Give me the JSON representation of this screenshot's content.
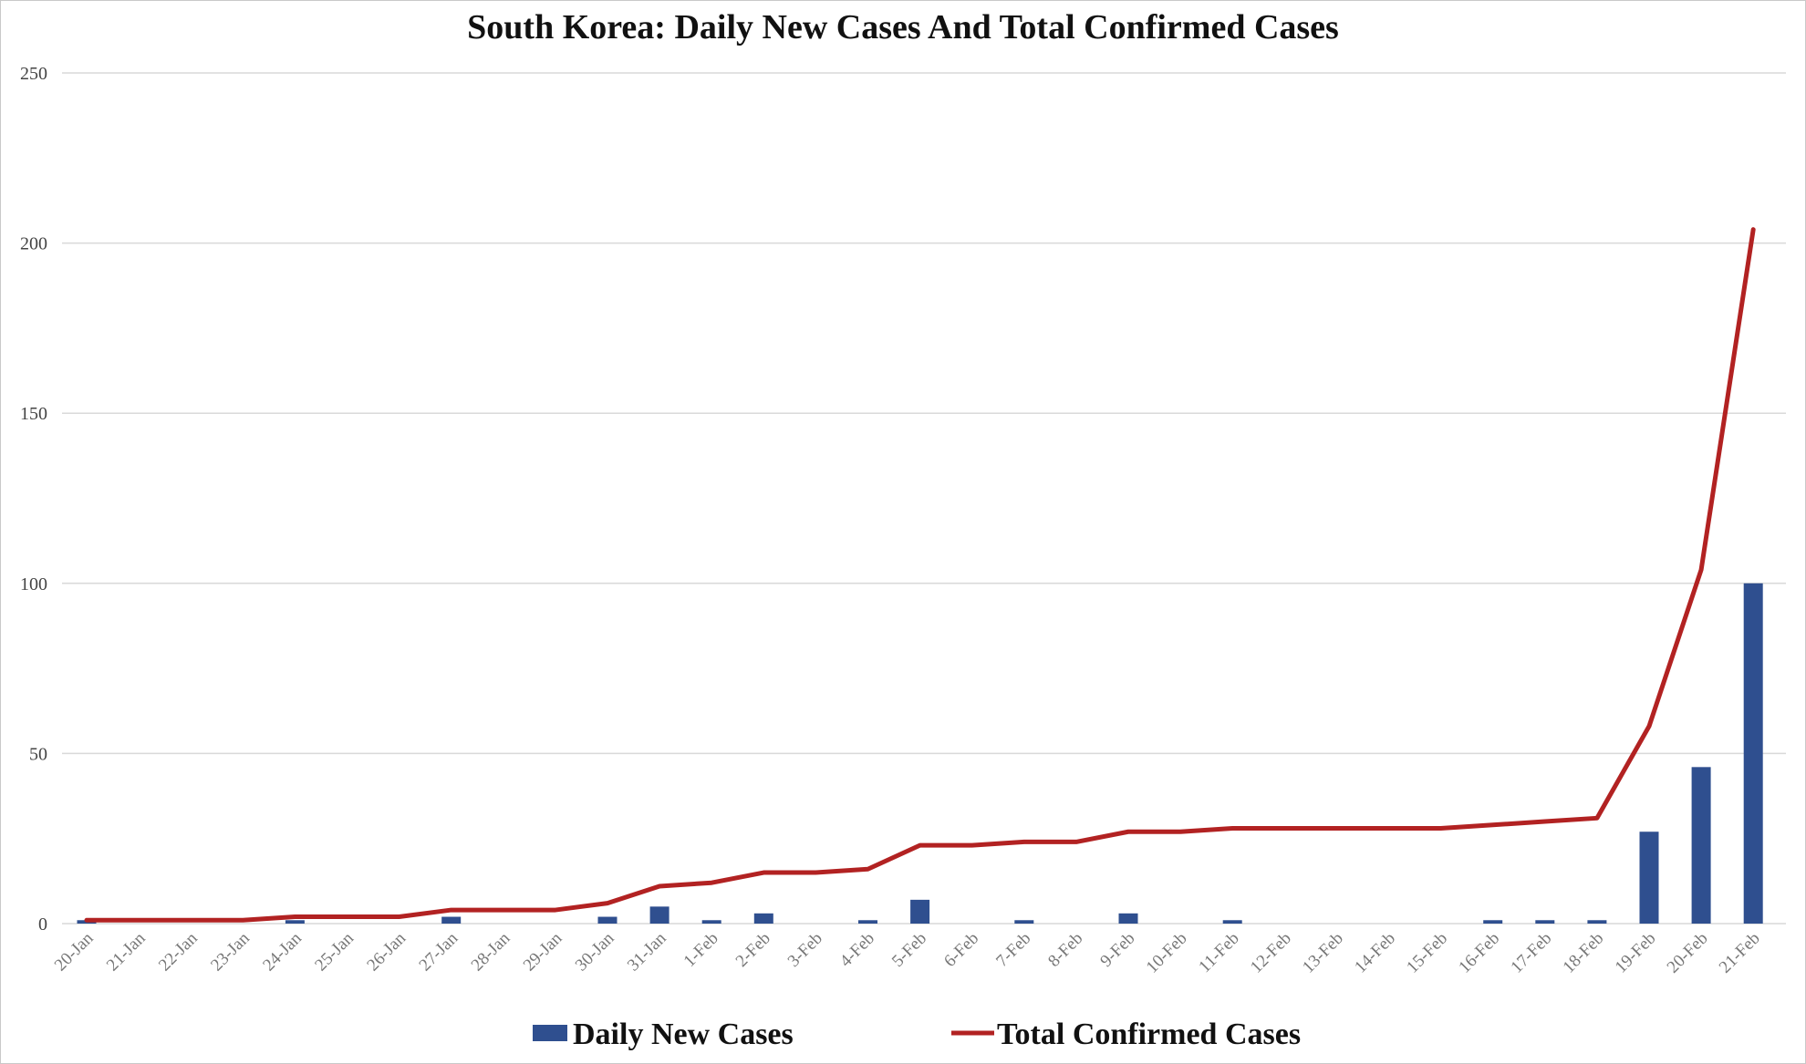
{
  "chart_data": {
    "type": "bar",
    "title": "South Korea: Daily New Cases And Total Confirmed Cases",
    "xlabel": "",
    "ylabel": "",
    "ylim": [
      0,
      250
    ],
    "yticks": [
      0,
      50,
      100,
      150,
      200,
      250
    ],
    "grid": true,
    "legend_position": "bottom",
    "categories": [
      "20-Jan",
      "21-Jan",
      "22-Jan",
      "23-Jan",
      "24-Jan",
      "25-Jan",
      "26-Jan",
      "27-Jan",
      "28-Jan",
      "29-Jan",
      "30-Jan",
      "31-Jan",
      "1-Feb",
      "2-Feb",
      "3-Feb",
      "4-Feb",
      "5-Feb",
      "6-Feb",
      "7-Feb",
      "8-Feb",
      "9-Feb",
      "10-Feb",
      "11-Feb",
      "12-Feb",
      "13-Feb",
      "14-Feb",
      "15-Feb",
      "16-Feb",
      "17-Feb",
      "18-Feb",
      "19-Feb",
      "20-Feb",
      "21-Feb"
    ],
    "series": [
      {
        "name": "Daily New Cases",
        "type": "bar",
        "color": "#2f4f8f",
        "values": [
          1,
          0,
          0,
          0,
          1,
          0,
          0,
          2,
          0,
          0,
          2,
          5,
          1,
          3,
          0,
          1,
          7,
          0,
          1,
          0,
          3,
          0,
          1,
          0,
          0,
          0,
          0,
          1,
          1,
          1,
          27,
          46,
          100
        ]
      },
      {
        "name": "Total Confirmed Cases",
        "type": "line",
        "color": "#b22222",
        "values": [
          1,
          1,
          1,
          1,
          2,
          2,
          2,
          4,
          4,
          4,
          6,
          11,
          12,
          15,
          15,
          16,
          23,
          23,
          24,
          24,
          27,
          27,
          28,
          28,
          28,
          28,
          28,
          29,
          30,
          31,
          58,
          104,
          204
        ]
      }
    ]
  }
}
